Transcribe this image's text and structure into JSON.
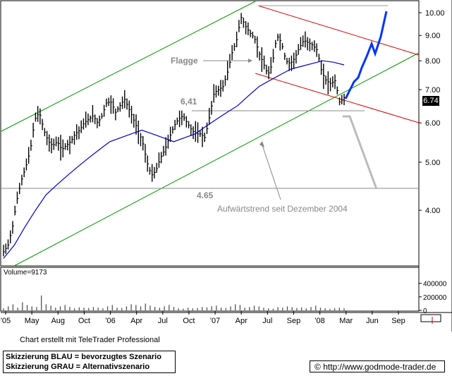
{
  "chart_data": [
    {
      "type": "candlestick",
      "scale": "log",
      "ylim": [
        3.1,
        10.3
      ],
      "yticks": [
        "10.00",
        "9.00",
        "8.00",
        "7.00",
        "6.00",
        "5.00",
        "4.00"
      ],
      "ytick_values": [
        10,
        9,
        8,
        7,
        6,
        5,
        4
      ],
      "xticks": [
        "'05",
        "May",
        "Aug",
        "Oct",
        "'06",
        "Apr",
        "Jul",
        "Oct",
        "'07",
        "Apr",
        "Jul",
        "Sep",
        "'08",
        "Mar",
        "Jun",
        "Sep"
      ],
      "current_price_label": "6.74",
      "current_price": 6.74,
      "annotations": [
        {
          "text": "Flagge"
        },
        {
          "text": "6,41",
          "value": 6.41
        },
        {
          "text": "4.65",
          "value": 4.65
        },
        {
          "text": "Aufwärtstrend seit Dezember 2004"
        }
      ],
      "series": [
        {
          "price_path": [
            3.3,
            3.4,
            3.7,
            4.2,
            4.6,
            4.9,
            5.3,
            6.1,
            6.3,
            5.8,
            5.5,
            5.4,
            5.5,
            5.3,
            5.4,
            5.5,
            5.7,
            5.8,
            6.0,
            6.1,
            6.2,
            6.0,
            6.2,
            6.6,
            6.6,
            6.3,
            6.5,
            6.7,
            6.4,
            6.1,
            5.8,
            5.5,
            5.0,
            4.7,
            4.8,
            5.1,
            5.3,
            5.6,
            5.9,
            6.1,
            6.2,
            6.0,
            5.8,
            5.7,
            5.7,
            5.6,
            6.2,
            6.9,
            7.0,
            7.1,
            7.6,
            8.3,
            8.8,
            9.8,
            9.4,
            9.1,
            8.9,
            8.3,
            7.9,
            7.5,
            7.9,
            9.0,
            8.7,
            8.0,
            7.9,
            8.1,
            8.5,
            8.8,
            8.7,
            8.6,
            8.4,
            7.6,
            7.3,
            7.2,
            7.3,
            6.6,
            6.74
          ]
        },
        {
          "name": "",
          "ma_path": [
            3.2,
            3.4,
            3.7,
            4.0,
            4.3,
            4.5,
            4.7,
            4.9,
            5.1,
            5.3,
            5.5,
            5.6,
            5.7,
            5.8,
            5.7,
            5.6,
            5.5,
            5.6,
            5.7,
            5.9,
            6.1,
            6.3,
            6.5,
            6.8,
            7.1,
            7.3,
            7.5,
            7.7,
            7.8,
            7.9,
            8.0,
            7.95,
            7.85
          ]
        }
      ]
    },
    {
      "type": "bar",
      "title": "Volume=9173",
      "yticks": [
        "400000",
        "200000",
        "0"
      ],
      "ylim": [
        0,
        500000
      ],
      "values": [
        30000,
        60000,
        90000,
        40000,
        120000,
        80000,
        60000,
        50000,
        220000,
        90000,
        70000,
        40000,
        60000,
        80000,
        50000,
        30000,
        45000,
        40000,
        35000,
        50000,
        40000,
        30000,
        60000,
        80000,
        40000,
        35000,
        60000,
        90000,
        80000,
        60000,
        100000,
        70000,
        50000,
        40000,
        60000,
        80000,
        50000,
        30000,
        25000,
        40000,
        30000,
        35000,
        50000,
        45000,
        60000,
        70000,
        40000,
        35000,
        60000,
        90000,
        80000,
        40000,
        50000,
        70000,
        60000,
        40000,
        30000,
        25000,
        50000,
        40000,
        60000,
        50000,
        35000,
        45000,
        30000,
        50000,
        70000,
        40000,
        30000,
        20000,
        35000,
        40000,
        30000
      ]
    }
  ],
  "footer": {
    "credit": "Chart erstellt mit TeleTrader Professional",
    "legend_line1": "Skizzierung BLAU = bevorzugtes Szenario",
    "legend_line2": "Skizzierung GRAU = Alternativszenario",
    "url": "http://www.godmode-trader.de",
    "copyright_symbol": "©"
  },
  "colors": {
    "price": "#000000",
    "ma": "#0000cc",
    "channel_green": "#009900",
    "channel_red": "#dd0000",
    "blue_scenario": "#0033ff",
    "grey_scenario": "#aaaaaa",
    "annotation": "#888888"
  }
}
